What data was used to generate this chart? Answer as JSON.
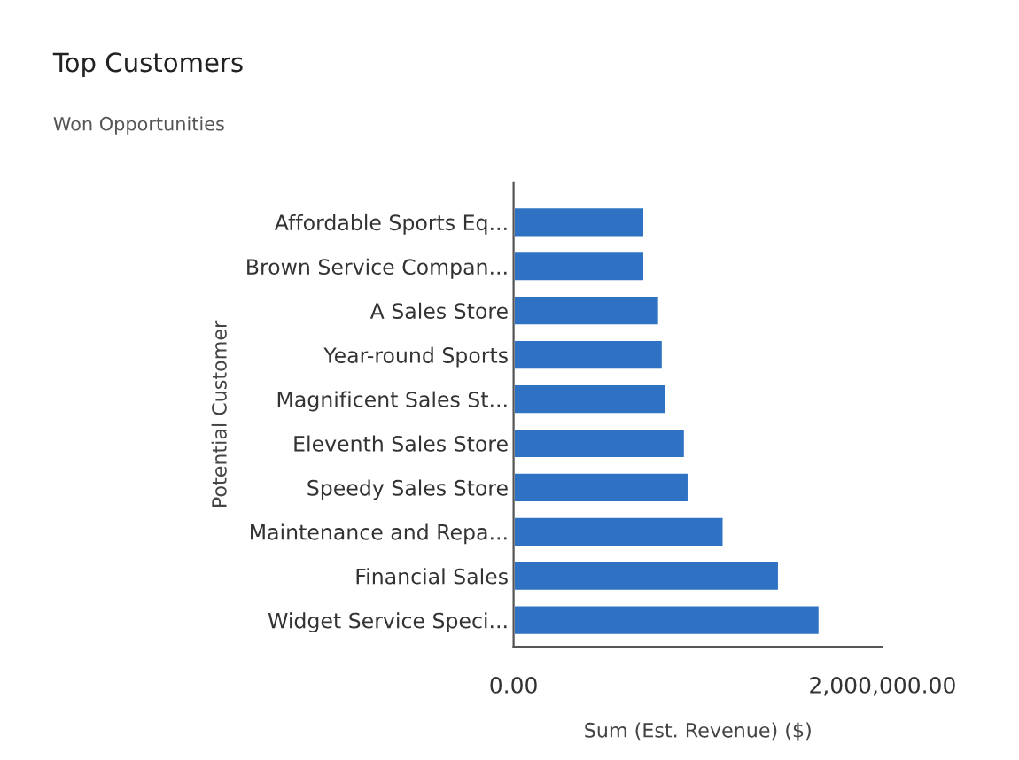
{
  "chart_data": {
    "type": "bar",
    "orientation": "horizontal",
    "title": "Top Customers",
    "subtitle": "Won Opportunities",
    "xlabel": "Sum (Est. Revenue) ($)",
    "ylabel": "Potential Customer",
    "categories": [
      "Affordable Sports Eq...",
      "Brown Service Compan...",
      "A Sales Store",
      "Year-round Sports",
      "Magnificent Sales St...",
      "Eleventh Sales Store",
      "Speedy Sales Store",
      "Maintenance and Repa...",
      "Financial Sales",
      "Widget Service Speci..."
    ],
    "values": [
      710000,
      710000,
      790000,
      810000,
      830000,
      930000,
      950000,
      1140000,
      1440000,
      1660000
    ],
    "color": "#2f72c4",
    "xlim": [
      0,
      2000000
    ],
    "xticks": [
      {
        "value": 0,
        "label": "0.00"
      },
      {
        "value": 2000000,
        "label": "2,000,000.00"
      }
    ],
    "grid": false,
    "legend": false
  }
}
